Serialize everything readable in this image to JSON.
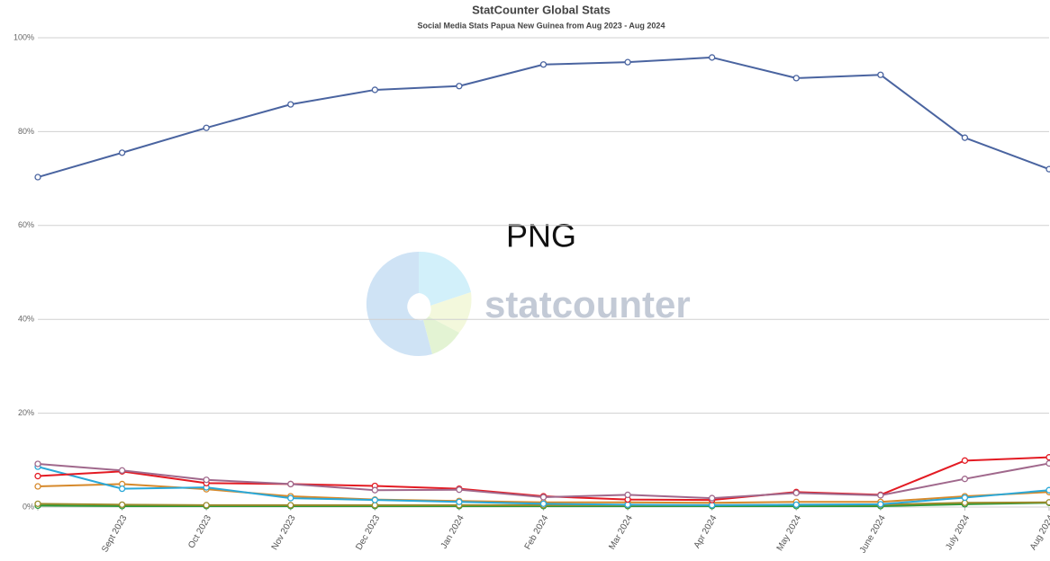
{
  "chart_data": {
    "type": "line",
    "title": "StatCounter Global Stats",
    "subtitle": "Social Media Stats Papua New Guinea from Aug 2023 - Aug 2024",
    "annotation": "PNG",
    "watermark": "statcounter",
    "categories": [
      null,
      "Sept 2023",
      "Oct 2023",
      "Nov 2023",
      "Dec 2023",
      "Jan 2024",
      "Feb 2024",
      "Mar 2024",
      "Apr 2024",
      "May 2024",
      "June 2024",
      "July 2024",
      "Aug 2024"
    ],
    "ylim": [
      0,
      100
    ],
    "yticks": [
      {
        "value": 0,
        "label": "0%"
      },
      {
        "value": 20,
        "label": "20%"
      },
      {
        "value": 40,
        "label": "40%"
      },
      {
        "value": 60,
        "label": "60%"
      },
      {
        "value": 80,
        "label": "80%"
      },
      {
        "value": 100,
        "label": "100%"
      }
    ],
    "grid": true,
    "series": [
      {
        "color": "#4a64a0",
        "values": [
          70.3,
          75.5,
          80.8,
          85.8,
          88.9,
          89.7,
          94.3,
          94.8,
          95.8,
          91.4,
          92.1,
          78.7,
          72.0
        ]
      },
      {
        "color": "#a0688c",
        "values": [
          9.2,
          7.8,
          5.8,
          4.9,
          3.6,
          3.7,
          2.1,
          2.6,
          1.9,
          3.0,
          2.5,
          6.0,
          9.3
        ]
      },
      {
        "color": "#e31b23",
        "values": [
          6.6,
          7.6,
          5.1,
          4.9,
          4.5,
          3.9,
          2.3,
          1.6,
          1.5,
          3.2,
          2.6,
          9.9,
          10.6
        ]
      },
      {
        "color": "#2aa8d8",
        "values": [
          8.6,
          3.9,
          4.2,
          1.9,
          1.5,
          1.1,
          0.7,
          0.5,
          0.4,
          0.5,
          0.6,
          2.0,
          3.6
        ]
      },
      {
        "color": "#d6892b",
        "values": [
          4.4,
          4.9,
          3.8,
          2.3,
          1.6,
          1.3,
          1.0,
          1.0,
          0.9,
          1.1,
          1.1,
          2.3,
          3.2
        ]
      },
      {
        "color": "#9a8a2a",
        "values": [
          0.7,
          0.5,
          0.4,
          0.4,
          0.4,
          0.4,
          0.4,
          0.4,
          0.4,
          0.5,
          0.5,
          0.9,
          1.0
        ]
      },
      {
        "color": "#2a9a3a",
        "values": [
          0.3,
          0.2,
          0.2,
          0.2,
          0.2,
          0.2,
          0.2,
          0.2,
          0.2,
          0.2,
          0.2,
          0.6,
          0.9
        ]
      }
    ]
  }
}
